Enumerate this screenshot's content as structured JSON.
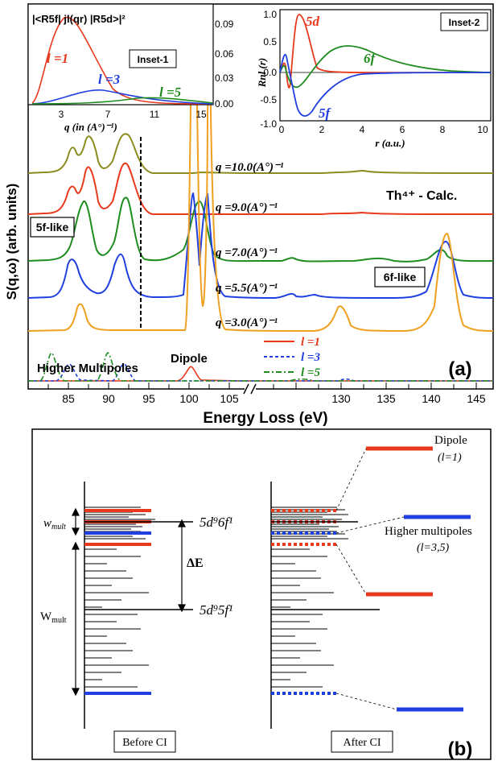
{
  "panel_a": {
    "label": "(a)",
    "xlabel": "Energy Loss (eV)",
    "ylabel": "S(q,ω) (arb. units)",
    "x_ticks_left": [
      "85",
      "90",
      "95",
      "100",
      "105"
    ],
    "x_ticks_right": [
      "130",
      "135",
      "140",
      "145"
    ],
    "calc_label": "Th⁴⁺ - Calc.",
    "box_5f": "5f-like",
    "box_6f": "6f-like",
    "dipole_label": "Dipole",
    "multipoles_label": "Higher Multipoles",
    "curves": [
      {
        "q": "q =10.0(A°)⁻¹",
        "color": "#8c8c1e"
      },
      {
        "q": "q =9.0(A°)⁻¹",
        "color": "#e8391c"
      },
      {
        "q": "q =7.0(A°)⁻¹",
        "color": "#1f8c1f"
      },
      {
        "q": "q =5.5(A°)⁻¹",
        "color": "#1f3fe0"
      },
      {
        "q": "q =3.0(A°)⁻¹",
        "color": "#f0a020"
      }
    ],
    "legend": [
      {
        "label": "l =1",
        "color": "#e8391c"
      },
      {
        "label": "l =3",
        "color": "#1f3fe0"
      },
      {
        "label": "l =5",
        "color": "#1f8c1f"
      }
    ]
  },
  "inset1": {
    "tag": "Inset-1",
    "formula": "|<R5f| jl(qr) |R5d>|²",
    "xlabel": "q (in (A°)⁻¹)",
    "x_ticks": [
      "3",
      "7",
      "11",
      "15"
    ],
    "y_ticks": [
      "0.09",
      "0.06",
      "0.03",
      "0.00"
    ],
    "curve_labels": [
      "l =1",
      "l =3",
      "l =5"
    ]
  },
  "inset2": {
    "tag": "Inset-2",
    "ylabel": "Rnl (r)",
    "xlabel": "r (a.u.)",
    "x_ticks": [
      "0",
      "2",
      "4",
      "6",
      "8",
      "10"
    ],
    "y_ticks": [
      "1.0",
      "0.5",
      "0.0",
      "-0.5",
      "-1.0"
    ],
    "curve_labels": [
      "5d",
      "6f",
      "5f"
    ]
  },
  "panel_b": {
    "label": "(b)",
    "w_mult": "w",
    "w_mult_sub": "mult",
    "W_mult": "W",
    "W_mult_sub": "mult",
    "config_6f": "5d⁹6f¹",
    "config_5f": "5d⁹5f¹",
    "delta_e": "ΔE",
    "dipole": "Dipole",
    "dipole_l": "(l=1)",
    "higher": "Higher multipoles",
    "higher_l": "(l=3,5)",
    "before": "Before CI",
    "after": "After CI"
  }
}
